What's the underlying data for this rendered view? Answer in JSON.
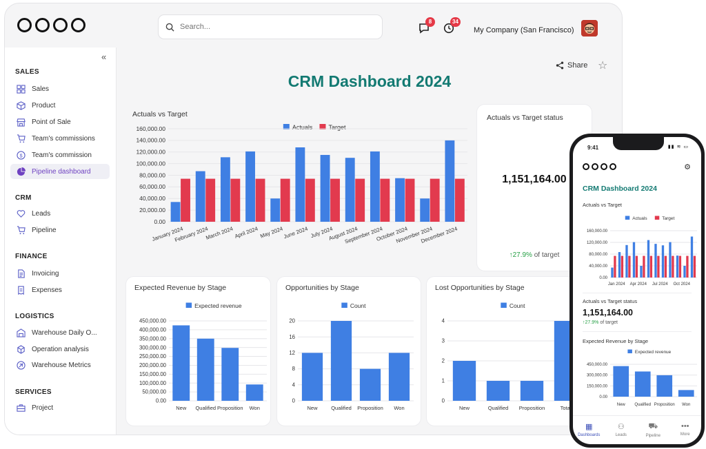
{
  "app": {
    "search_placeholder": "Search...",
    "chat_badge": "8",
    "activity_badge": "34",
    "company": "My Company (San Francisco)"
  },
  "sidebar": {
    "collapse": "«",
    "sections": [
      {
        "title": "SALES",
        "items": [
          {
            "label": "Sales",
            "icon": "grid-icon"
          },
          {
            "label": "Product",
            "icon": "box-icon"
          },
          {
            "label": "Point of Sale",
            "icon": "store-icon"
          },
          {
            "label": "Team's commissions",
            "icon": "cart-icon"
          },
          {
            "label": "Team's commission",
            "icon": "dollar-icon"
          },
          {
            "label": "Pipeline dashboard",
            "icon": "pie-icon",
            "active": true
          }
        ]
      },
      {
        "title": "CRM",
        "items": [
          {
            "label": "Leads",
            "icon": "heart-icon"
          },
          {
            "label": "Pipeline",
            "icon": "cart-icon"
          }
        ]
      },
      {
        "title": "FINANCE",
        "items": [
          {
            "label": "Invoicing",
            "icon": "document-icon"
          },
          {
            "label": "Expenses",
            "icon": "receipt-icon"
          }
        ]
      },
      {
        "title": "LOGISTICS",
        "items": [
          {
            "label": "Warehouse Daily O...",
            "icon": "warehouse-icon"
          },
          {
            "label": "Operation analysis",
            "icon": "cube-icon"
          },
          {
            "label": "Warehouse Metrics",
            "icon": "link-icon"
          }
        ]
      },
      {
        "title": "SERVICES",
        "items": [
          {
            "label": "Project",
            "icon": "briefcase-icon"
          }
        ]
      }
    ]
  },
  "main": {
    "share_label": "Share",
    "title": "CRM Dashboard 2024",
    "status_card": {
      "title": "Actuals vs Target status",
      "value": "1,151,164.00",
      "pct": "27.9%",
      "pct_suffix": "of target"
    }
  },
  "colors": {
    "actuals": "#3f7fe3",
    "target": "#e23a4e",
    "accent": "#137a72",
    "up": "#27a046"
  },
  "chart_data": [
    {
      "id": "actuals_vs_target",
      "type": "bar",
      "title": "Actuals vs Target",
      "categories": [
        "January 2024",
        "February 2024",
        "March 2024",
        "April 2024",
        "May 2024",
        "June 2024",
        "July 2024",
        "August 2024",
        "September 2024",
        "October 2024",
        "November 2024",
        "December 2024"
      ],
      "series": [
        {
          "name": "Actuals",
          "values": [
            34000,
            87000,
            111000,
            121000,
            40000,
            128000,
            115000,
            110000,
            121000,
            75000,
            40000,
            140000
          ]
        },
        {
          "name": "Target",
          "values": [
            74000,
            74000,
            74000,
            74000,
            74000,
            74000,
            74000,
            74000,
            74000,
            74000,
            74000,
            74000
          ]
        }
      ],
      "ylim": [
        0,
        160000
      ],
      "yticks": [
        "0.00",
        "20,000.00",
        "40,000.00",
        "60,000.00",
        "80,000.00",
        "100,000.00",
        "120,000.00",
        "140,000.00",
        "160,000.00"
      ],
      "legend": "top-center",
      "grid": true
    },
    {
      "id": "expected_revenue",
      "type": "bar",
      "title": "Expected Revenue by Stage",
      "categories": [
        "New",
        "Qualified",
        "Proposition",
        "Won"
      ],
      "series": [
        {
          "name": "Expected revenue",
          "values": [
            425000,
            350000,
            298000,
            92000
          ]
        }
      ],
      "ylim": [
        0,
        450000
      ],
      "yticks": [
        "0.00",
        "50,000.00",
        "100,000.00",
        "150,000.00",
        "200,000.00",
        "250,000.00",
        "300,000.00",
        "350,000.00",
        "400,000.00",
        "450,000.00"
      ],
      "legend": "top-center",
      "grid": true
    },
    {
      "id": "opportunities",
      "type": "bar",
      "title": "Opportunities by Stage",
      "categories": [
        "New",
        "Qualified",
        "Proposition",
        "Won"
      ],
      "series": [
        {
          "name": "Count",
          "values": [
            12,
            20,
            8,
            12
          ]
        }
      ],
      "ylim": [
        0,
        20
      ],
      "yticks": [
        "0",
        "4",
        "8",
        "12",
        "16",
        "20"
      ],
      "legend": "top-center",
      "grid": true
    },
    {
      "id": "lost_opportunities",
      "type": "bar",
      "title": "Lost Opportunities by Stage",
      "categories": [
        "New",
        "Qualified",
        "Proposition",
        "Total"
      ],
      "series": [
        {
          "name": "Count",
          "values": [
            2,
            1,
            1,
            4
          ]
        }
      ],
      "ylim": [
        0,
        4
      ],
      "yticks": [
        "0",
        "1",
        "2",
        "3",
        "4"
      ],
      "legend": "top-center",
      "grid": true
    },
    {
      "id": "mobile_actuals_vs_target",
      "type": "bar",
      "title": "Actuals vs Target",
      "categories": [
        "January 2024",
        "February 2024",
        "March 2024",
        "April 2024",
        "May 2024",
        "June 2024",
        "July 2024",
        "August 2024",
        "September 2024",
        "October 2024",
        "November 2024",
        "December 2024"
      ],
      "tick_labels": [
        "Jan 2024",
        "Apr 2024",
        "Jul 2024",
        "Oct 2024"
      ],
      "series": [
        {
          "name": "Actuals",
          "values": [
            34000,
            87000,
            111000,
            121000,
            40000,
            128000,
            115000,
            110000,
            121000,
            75000,
            40000,
            140000
          ]
        },
        {
          "name": "Target",
          "values": [
            74000,
            74000,
            74000,
            74000,
            74000,
            74000,
            74000,
            74000,
            74000,
            74000,
            74000,
            74000
          ]
        }
      ],
      "ylim": [
        0,
        160000
      ],
      "yticks": [
        "0.00",
        "40,000.00",
        "80,000.00",
        "120,000.00",
        "160,000.00"
      ],
      "legend": "top-center",
      "grid": true
    },
    {
      "id": "mobile_expected_revenue",
      "type": "bar",
      "title": "Expected Revenue by Stage",
      "categories": [
        "New",
        "Qualified",
        "Proposition",
        "Won"
      ],
      "series": [
        {
          "name": "Expected revenue",
          "values": [
            425000,
            350000,
            298000,
            92000
          ]
        }
      ],
      "ylim": [
        0,
        450000
      ],
      "yticks": [
        "0.00",
        "150,000.00",
        "300,000.00",
        "450,000.00"
      ],
      "legend": "top-center",
      "grid": true
    }
  ],
  "phone": {
    "time": "9:41",
    "title": "CRM Dashboard 2024",
    "status_title": "Actuals vs Target status",
    "status_value": "1,151,164.00",
    "pct": "27.9%",
    "pct_suffix": "of target",
    "nav": [
      {
        "label": "Dashboards",
        "icon": "dashboard-icon",
        "active": true
      },
      {
        "label": "Leads",
        "icon": "person-icon"
      },
      {
        "label": "Pipeline",
        "icon": "cart-icon"
      },
      {
        "label": "More",
        "icon": "more-icon"
      }
    ]
  }
}
